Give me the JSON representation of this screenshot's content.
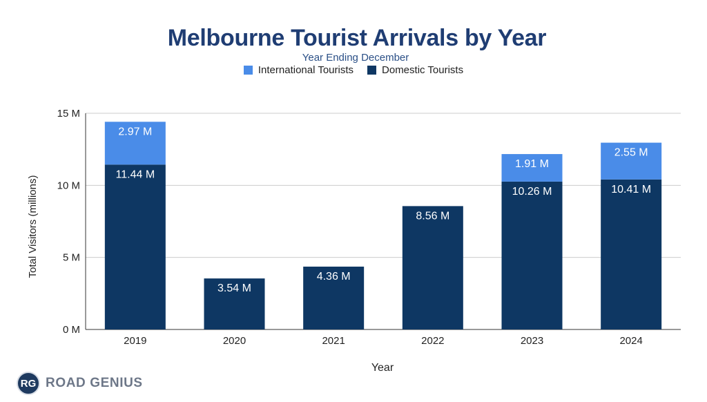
{
  "chart_data": {
    "type": "bar",
    "stacked": true,
    "title": "Melbourne Tourist Arrivals by Year",
    "subtitle": "Year Ending December",
    "xlabel": "Year",
    "ylabel": "Total Visitors (millions)",
    "ylim": [
      0,
      15
    ],
    "yticks": [
      {
        "value": 0,
        "label": "0 M"
      },
      {
        "value": 5,
        "label": "5 M"
      },
      {
        "value": 10,
        "label": "10 M"
      },
      {
        "value": 15,
        "label": "15 M"
      }
    ],
    "grid": true,
    "legend_position": "top-center",
    "categories": [
      "2019",
      "2020",
      "2021",
      "2022",
      "2023",
      "2024"
    ],
    "series": [
      {
        "name": "Domestic Tourists",
        "color": "#0e3763",
        "values": [
          11.44,
          3.54,
          4.36,
          8.56,
          10.26,
          10.41
        ],
        "labels": [
          "11.44 M",
          "3.54 M",
          "4.36 M",
          "8.56 M",
          "10.26 M",
          "10.41 M"
        ]
      },
      {
        "name": "International Tourists",
        "color": "#4a8ce8",
        "values": [
          2.97,
          null,
          null,
          null,
          1.91,
          2.55
        ],
        "labels": [
          "2.97 M",
          "",
          "",
          "",
          "1.91 M",
          "2.55 M"
        ]
      }
    ],
    "legend_order": [
      "International Tourists",
      "Domestic Tourists"
    ]
  },
  "branding": {
    "logo_badge": "RG",
    "logo_text": "ROAD GENIUS"
  }
}
